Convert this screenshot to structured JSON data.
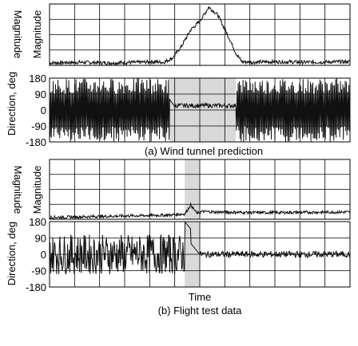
{
  "figure": {
    "caption_a": "(a) Wind tunnel prediction",
    "caption_b": "(b) Flight test data",
    "xlabel": "Time"
  },
  "colors": {
    "trace": "#111111",
    "grid": "#000000",
    "highlight": "#d9d9d9",
    "background": "#ffffff"
  },
  "chart_data": [
    {
      "id": "a-magnitude",
      "type": "line",
      "panel": "(a) Wind tunnel prediction",
      "ylabel": "Magnitude",
      "xlim": [
        0,
        100
      ],
      "ylim": [
        0,
        1
      ],
      "grid": true,
      "series": [
        {
          "x": [
            0,
            10,
            20,
            30,
            34,
            38,
            41,
            44,
            47,
            50,
            53,
            56,
            58,
            60,
            62,
            64,
            68,
            75,
            85,
            100
          ],
          "values": [
            0.04,
            0.05,
            0.04,
            0.05,
            0.06,
            0.05,
            0.12,
            0.32,
            0.58,
            0.72,
            0.95,
            0.82,
            0.62,
            0.42,
            0.2,
            0.06,
            0.05,
            0.06,
            0.05,
            0.06
          ]
        }
      ]
    },
    {
      "id": "a-direction",
      "type": "line",
      "panel": "(a) Wind tunnel prediction",
      "ylabel": "Direction, deg",
      "yticks": [
        "180",
        "90",
        "0",
        "-90",
        "-180"
      ],
      "ylim": [
        -180,
        180
      ],
      "xlim": [
        0,
        100
      ],
      "grid": true,
      "highlight_x": [
        40,
        62
      ],
      "series": [
        {
          "x": [
            0,
            40,
            42,
            46,
            50,
            55,
            60,
            62,
            64,
            100
          ],
          "values": [
            "random",
            "random",
            20,
            15,
            30,
            25,
            30,
            20,
            "random",
            "random"
          ]
        }
      ]
    },
    {
      "id": "b-magnitude",
      "type": "line",
      "panel": "(b) Flight test data",
      "ylabel": "Magnitude",
      "xlim": [
        0,
        100
      ],
      "ylim": [
        0,
        1
      ],
      "grid": true,
      "highlight_x": [
        45,
        50
      ],
      "series": [
        {
          "x": [
            0,
            20,
            40,
            45,
            47,
            49,
            51,
            55,
            70,
            100
          ],
          "values": [
            0.03,
            0.05,
            0.07,
            0.09,
            0.24,
            0.1,
            0.13,
            0.12,
            0.11,
            0.12
          ]
        }
      ]
    },
    {
      "id": "b-direction",
      "type": "line",
      "panel": "(b) Flight test data",
      "ylabel": "Direction, deg",
      "xlabel": "Time",
      "yticks": [
        "180",
        "90",
        "0",
        "-90",
        "-180"
      ],
      "ylim": [
        -180,
        180
      ],
      "xlim": [
        0,
        100
      ],
      "grid": true,
      "highlight_x": [
        45,
        50
      ],
      "series": [
        {
          "x": [
            0,
            45,
            47,
            48,
            50,
            55,
            70,
            100
          ],
          "values": [
            "noisy",
            "noisy",
            170,
            40,
            10,
            5,
            0,
            -5
          ]
        }
      ]
    }
  ]
}
